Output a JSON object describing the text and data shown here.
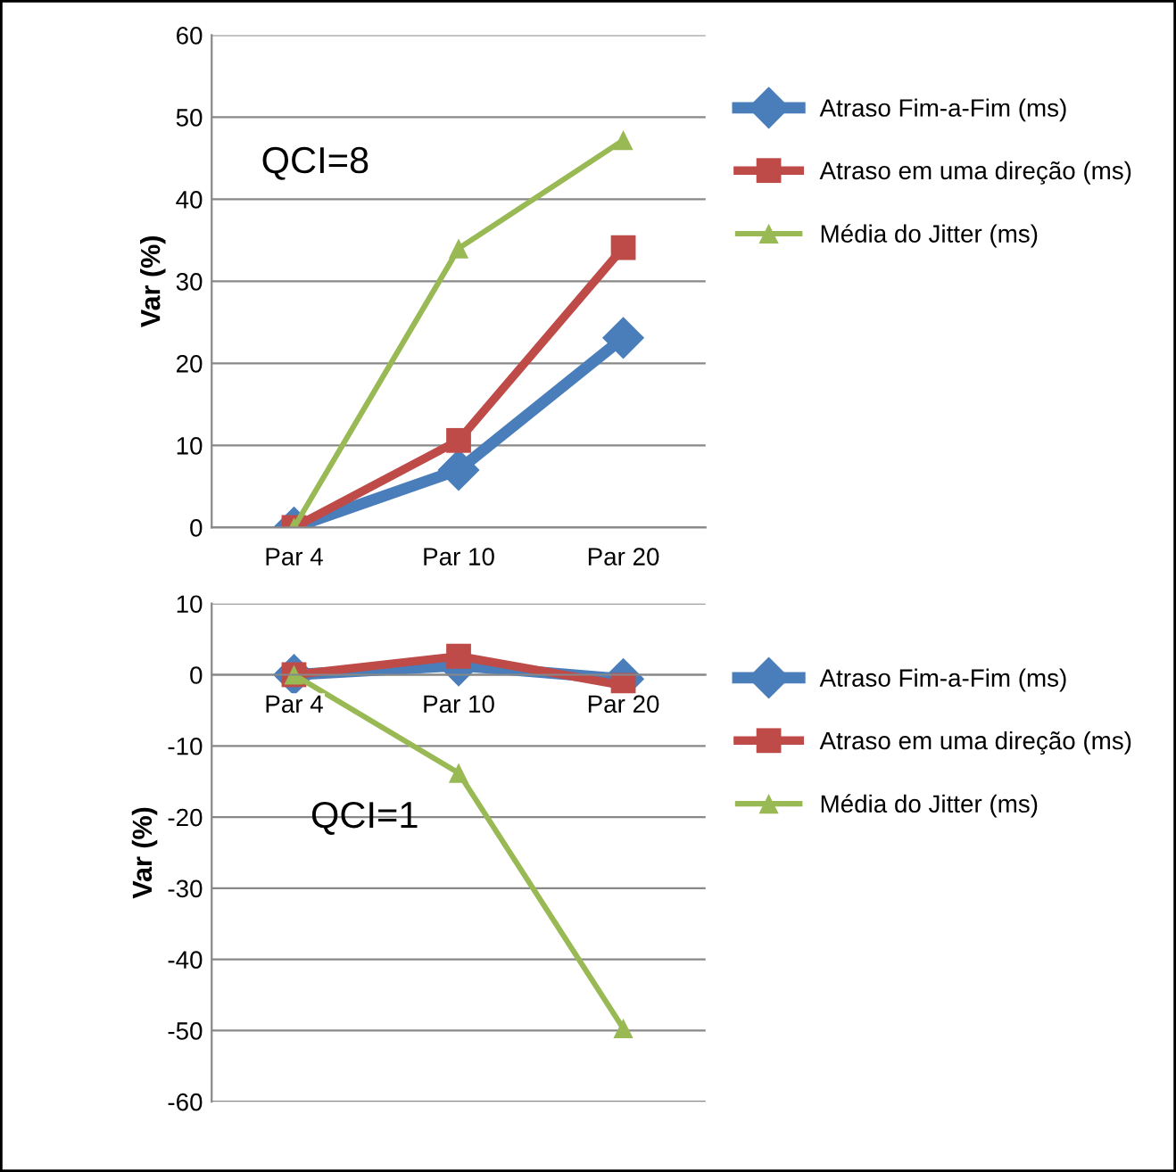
{
  "chart_data": [
    {
      "type": "line",
      "categories": [
        "Par 4",
        "Par 10",
        "Par 20"
      ],
      "ylabel": "Var (%)",
      "ylim": [
        0,
        60
      ],
      "yticks": [
        0,
        10,
        20,
        30,
        40,
        50,
        60
      ],
      "grid": "y",
      "legend": "right",
      "annotations": [
        "QCI=8"
      ],
      "series": [
        {
          "name": "Atraso Fim-a-Fim (ms)",
          "color": "#4a7ebb",
          "marker": "diamond",
          "values": [
            0,
            7.0,
            23.1
          ]
        },
        {
          "name": "Atraso em uma direção (ms)",
          "color": "#be4b48",
          "marker": "square",
          "values": [
            0,
            10.6,
            34.1
          ]
        },
        {
          "name": "Média do Jitter (ms)",
          "color": "#98b954",
          "marker": "triangle",
          "values": [
            0,
            34.0,
            47.2
          ]
        }
      ]
    },
    {
      "type": "line",
      "categories": [
        "Par 4",
        "Par 10",
        "Par 20"
      ],
      "ylabel": "Var (%)",
      "ylim": [
        -60,
        10
      ],
      "yticks": [
        -60,
        -50,
        -40,
        -30,
        -20,
        -10,
        0,
        10
      ],
      "grid": "y",
      "legend": "right",
      "annotations": [
        "QCI=1"
      ],
      "series": [
        {
          "name": "Atraso Fim-a-Fim (ms)",
          "color": "#4a7ebb",
          "marker": "diamond",
          "values": [
            0,
            1.3,
            -0.6
          ]
        },
        {
          "name": "Atraso em uma direção (ms)",
          "color": "#be4b48",
          "marker": "square",
          "values": [
            0,
            2.6,
            -1.5
          ]
        },
        {
          "name": "Média do Jitter (ms)",
          "color": "#98b954",
          "marker": "triangle",
          "values": [
            0,
            -13.8,
            -49.7
          ]
        }
      ]
    }
  ]
}
